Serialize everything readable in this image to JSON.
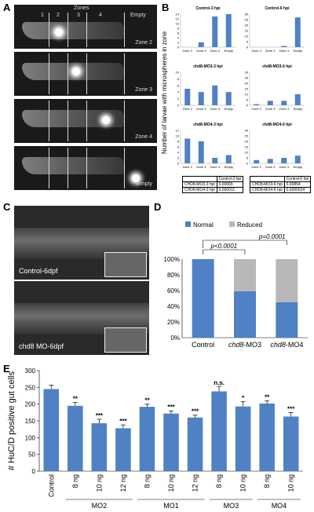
{
  "panels": {
    "A": {
      "label": "A",
      "zones_title": "Zones",
      "zone_numbers": [
        "1",
        "2",
        "3",
        "4",
        "Empty"
      ],
      "images": [
        "Zone 2",
        "Zone 3",
        "Zone 4",
        "Empty"
      ]
    },
    "B": {
      "label": "B",
      "ylabel": "Number of larvae with microspheres in zone"
    },
    "C": {
      "label": "C",
      "images": [
        "Control-6dpf",
        "chd8 MO-6dpf"
      ]
    },
    "D": {
      "label": "D"
    },
    "E": {
      "label": "E"
    }
  },
  "tables": {
    "left": {
      "header": "Control-3 hpi",
      "rows": [
        [
          "CHD8-MO3-3 hpi",
          "0.00065"
        ],
        [
          "CHD8-MO4-3 hpi",
          "0.000011"
        ]
      ]
    },
    "right": {
      "header": "Control-6 hpi",
      "rows": [
        [
          "CHD8-MO3-6 hpi",
          "0.00854"
        ],
        [
          "CHD8-MO4-6 hpi",
          "0.0000024"
        ]
      ]
    }
  },
  "chart_data": [
    {
      "type": "bar",
      "title": "Control-3 hpi",
      "categories": [
        "Zone 2",
        "Zone 3",
        "Zone 4",
        "Empty"
      ],
      "values": [
        0,
        2,
        13,
        14
      ],
      "ylim": [
        0,
        14
      ],
      "yticks": [
        0,
        2,
        4,
        6,
        8,
        10,
        12,
        14
      ]
    },
    {
      "type": "bar",
      "title": "Control-6 hpi",
      "categories": [
        "Zone 2",
        "Zone 3",
        "Zone 4",
        "Empty"
      ],
      "values": [
        0,
        0,
        1,
        27
      ],
      "ylim": [
        0,
        30
      ],
      "yticks": [
        0,
        5,
        10,
        15,
        20,
        25,
        30
      ]
    },
    {
      "type": "bar",
      "title": "chd8-MO3-3 hpi",
      "categories": [
        "Zone 2",
        "Zone 3",
        "Zone 4",
        "Empty"
      ],
      "values": [
        5,
        4,
        6,
        4
      ],
      "ylim": [
        0,
        10
      ],
      "yticks": [
        0,
        2,
        4,
        6,
        8,
        10
      ]
    },
    {
      "type": "bar",
      "title": "chd8-MO3-6 hpi",
      "categories": [
        "Zone 2",
        "Zone 3",
        "Zone 4",
        "Empty"
      ],
      "values": [
        1,
        4,
        4,
        10
      ],
      "ylim": [
        0,
        30
      ],
      "yticks": [
        0,
        5,
        10,
        15,
        20,
        25,
        30
      ]
    },
    {
      "type": "bar",
      "title": "chd8-MO4-3 hpi",
      "categories": [
        "Zone 2",
        "Zone 3",
        "Zone 4",
        "Empty"
      ],
      "values": [
        9,
        8,
        2,
        3
      ],
      "ylim": [
        0,
        12
      ],
      "yticks": [
        0,
        2,
        4,
        6,
        8,
        10,
        12
      ]
    },
    {
      "type": "bar",
      "title": "chd8-MO4-6 hpi",
      "categories": [
        "Zone 2",
        "Zone 3",
        "Zone 4",
        "Empty"
      ],
      "values": [
        3,
        4,
        5,
        7
      ],
      "ylim": [
        0,
        30
      ],
      "yticks": [
        0,
        5,
        10,
        15,
        20,
        25,
        30
      ]
    },
    {
      "type": "bar",
      "stacked": true,
      "categories": [
        "Control",
        "chd8-MO3",
        "chd8-MO4"
      ],
      "series": [
        {
          "name": "Normal",
          "values": [
            100,
            59,
            45
          ],
          "color": "#4f81c4"
        },
        {
          "name": "Reduced",
          "values": [
            0,
            41,
            55
          ],
          "color": "#b8b8b8"
        }
      ],
      "yticks": [
        "0%",
        "20%",
        "40%",
        "60%",
        "80%",
        "100%"
      ],
      "ylim": [
        0,
        100
      ],
      "annotations": [
        "p<0.0001",
        "p=0.0001"
      ]
    },
    {
      "type": "bar",
      "ylabel": "# HuC/D positive gut cells",
      "ylim": [
        0,
        300
      ],
      "yticks": [
        0,
        50,
        100,
        150,
        200,
        250,
        300
      ],
      "categories": [
        "Control",
        "8 ng",
        "10 ng",
        "12 ng",
        "8 ng",
        "10 ng",
        "12 ng",
        "8 ng",
        "10 ng",
        "8 ng",
        "10 ng"
      ],
      "values": [
        245,
        195,
        143,
        128,
        192,
        172,
        160,
        238,
        193,
        202,
        163
      ],
      "errors": [
        12,
        10,
        12,
        10,
        8,
        8,
        7,
        15,
        15,
        8,
        12
      ],
      "stars": [
        "",
        "**",
        "***",
        "***",
        "**",
        "***",
        "***",
        "n.s.",
        "*",
        "**",
        "***"
      ],
      "groups": [
        {
          "name": "MO2",
          "from": 1,
          "to": 3
        },
        {
          "name": "MO1",
          "from": 4,
          "to": 6
        },
        {
          "name": "MO3",
          "from": 7,
          "to": 8
        },
        {
          "name": "MO4",
          "from": 9,
          "to": 10
        }
      ]
    }
  ]
}
